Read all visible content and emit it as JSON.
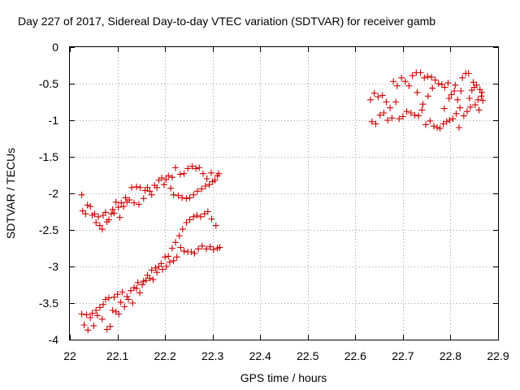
{
  "chart_data": {
    "type": "scatter",
    "title": "Day 227 of 2017, Sidereal Day-to-day VTEC variation (SDTVAR) for receiver gamb",
    "xlabel": "GPS time / hours",
    "ylabel": "SDTVAR / TECUs",
    "xlim": [
      22,
      22.9
    ],
    "ylim": [
      -4,
      0
    ],
    "xticks": [
      22,
      22.1,
      22.2,
      22.3,
      22.4,
      22.5,
      22.6,
      22.7,
      22.8,
      22.9
    ],
    "xtick_labels": [
      "22",
      "22.1",
      "22.2",
      "22.3",
      "22.4",
      "22.5",
      "22.6",
      "22.7",
      "22.8",
      "22.9"
    ],
    "yticks": [
      0,
      -0.5,
      -1,
      -1.5,
      -2,
      -2.5,
      -3,
      -3.5,
      -4
    ],
    "ytick_labels": [
      "0",
      "-0.5",
      "-1",
      "-1.5",
      "-2",
      "-2.5",
      "-3",
      "-3.5",
      "-4"
    ],
    "grid": true,
    "marker": "+",
    "color": "#cc0000",
    "series": [
      {
        "name": "SDTVAR",
        "points": [
          [
            22.025,
            -2.02
          ],
          [
            22.027,
            -2.24
          ],
          [
            22.033,
            -2.28
          ],
          [
            22.037,
            -2.16
          ],
          [
            22.043,
            -2.18
          ],
          [
            22.047,
            -2.3
          ],
          [
            22.052,
            -2.28
          ],
          [
            22.055,
            -2.4
          ],
          [
            22.06,
            -2.32
          ],
          [
            22.063,
            -2.44
          ],
          [
            22.068,
            -2.49
          ],
          [
            22.07,
            -2.3
          ],
          [
            22.075,
            -2.26
          ],
          [
            22.078,
            -2.39
          ],
          [
            22.082,
            -2.36
          ],
          [
            22.087,
            -2.28
          ],
          [
            22.09,
            -2.22
          ],
          [
            22.093,
            -2.27
          ],
          [
            22.097,
            -2.12
          ],
          [
            22.102,
            -2.19
          ],
          [
            22.105,
            -2.33
          ],
          [
            22.108,
            -2.13
          ],
          [
            22.113,
            -2.18
          ],
          [
            22.117,
            -2.06
          ],
          [
            22.12,
            -2.12
          ],
          [
            22.125,
            -2.09
          ],
          [
            22.13,
            -1.92
          ],
          [
            22.135,
            -2.13
          ],
          [
            22.14,
            -1.91
          ],
          [
            22.145,
            -2.15
          ],
          [
            22.148,
            -1.92
          ],
          [
            22.155,
            -2.07
          ],
          [
            22.158,
            -1.96
          ],
          [
            22.163,
            -1.92
          ],
          [
            22.168,
            -1.97
          ],
          [
            22.172,
            -2.02
          ],
          [
            22.178,
            -1.89
          ],
          [
            22.183,
            -1.92
          ],
          [
            22.187,
            -1.82
          ],
          [
            22.193,
            -1.79
          ],
          [
            22.198,
            -1.88
          ],
          [
            22.202,
            -1.81
          ],
          [
            22.207,
            -1.76
          ],
          [
            22.212,
            -1.93
          ],
          [
            22.215,
            -1.78
          ],
          [
            22.218,
            -2.02
          ],
          [
            22.222,
            -1.65
          ],
          [
            22.228,
            -2.03
          ],
          [
            22.232,
            -1.74
          ],
          [
            22.236,
            -2.06
          ],
          [
            22.24,
            -1.73
          ],
          [
            22.245,
            -2.07
          ],
          [
            22.248,
            -1.66
          ],
          [
            22.252,
            -2.06
          ],
          [
            22.257,
            -1.63
          ],
          [
            22.26,
            -2.02
          ],
          [
            22.265,
            -1.66
          ],
          [
            22.268,
            -1.97
          ],
          [
            22.272,
            -1.65
          ],
          [
            22.277,
            -1.94
          ],
          [
            22.28,
            -1.73
          ],
          [
            22.285,
            -1.9
          ],
          [
            22.288,
            -1.8
          ],
          [
            22.293,
            -1.88
          ],
          [
            22.297,
            -1.72
          ],
          [
            22.3,
            -1.84
          ],
          [
            22.305,
            -1.82
          ],
          [
            22.31,
            -1.76
          ],
          [
            22.313,
            -1.73
          ],
          [
            22.025,
            -3.65
          ],
          [
            22.03,
            -3.8
          ],
          [
            22.035,
            -3.66
          ],
          [
            22.038,
            -3.87
          ],
          [
            22.043,
            -3.7
          ],
          [
            22.047,
            -3.64
          ],
          [
            22.05,
            -3.81
          ],
          [
            22.055,
            -3.6
          ],
          [
            22.058,
            -3.67
          ],
          [
            22.063,
            -3.56
          ],
          [
            22.068,
            -3.72
          ],
          [
            22.07,
            -3.52
          ],
          [
            22.075,
            -3.45
          ],
          [
            22.078,
            -3.86
          ],
          [
            22.082,
            -3.43
          ],
          [
            22.085,
            -3.82
          ],
          [
            22.09,
            -3.6
          ],
          [
            22.093,
            -3.42
          ],
          [
            22.097,
            -3.62
          ],
          [
            22.1,
            -3.38
          ],
          [
            22.103,
            -3.65
          ],
          [
            22.107,
            -3.49
          ],
          [
            22.11,
            -3.35
          ],
          [
            22.115,
            -3.55
          ],
          [
            22.12,
            -3.41
          ],
          [
            22.123,
            -3.45
          ],
          [
            22.128,
            -3.33
          ],
          [
            22.132,
            -3.5
          ],
          [
            22.135,
            -3.29
          ],
          [
            22.14,
            -3.3
          ],
          [
            22.143,
            -3.22
          ],
          [
            22.147,
            -3.36
          ],
          [
            22.152,
            -3.25
          ],
          [
            22.155,
            -3.2
          ],
          [
            22.16,
            -3.19
          ],
          [
            22.163,
            -3.12
          ],
          [
            22.168,
            -3.16
          ],
          [
            22.172,
            -3.05
          ],
          [
            22.175,
            -3.18
          ],
          [
            22.18,
            -3.02
          ],
          [
            22.183,
            -3.08
          ],
          [
            22.187,
            -3.0
          ],
          [
            22.192,
            -2.96
          ],
          [
            22.195,
            -3.04
          ],
          [
            22.2,
            -2.87
          ],
          [
            22.203,
            -3.0
          ],
          [
            22.207,
            -2.86
          ],
          [
            22.21,
            -2.94
          ],
          [
            22.215,
            -2.75
          ],
          [
            22.218,
            -2.92
          ],
          [
            22.222,
            -2.67
          ],
          [
            22.225,
            -2.87
          ],
          [
            22.23,
            -2.58
          ],
          [
            22.233,
            -2.74
          ],
          [
            22.237,
            -2.49
          ],
          [
            22.24,
            -2.79
          ],
          [
            22.245,
            -2.4
          ],
          [
            22.248,
            -2.8
          ],
          [
            22.252,
            -2.36
          ],
          [
            22.255,
            -2.8
          ],
          [
            22.26,
            -2.32
          ],
          [
            22.262,
            -2.82
          ],
          [
            22.267,
            -2.3
          ],
          [
            22.27,
            -2.76
          ],
          [
            22.275,
            -2.32
          ],
          [
            22.278,
            -2.72
          ],
          [
            22.283,
            -2.28
          ],
          [
            22.287,
            -2.76
          ],
          [
            22.29,
            -2.25
          ],
          [
            22.295,
            -2.73
          ],
          [
            22.298,
            -2.35
          ],
          [
            22.302,
            -2.77
          ],
          [
            22.307,
            -2.44
          ],
          [
            22.31,
            -2.75
          ],
          [
            22.315,
            -2.74
          ],
          [
            22.632,
            -0.72
          ],
          [
            22.635,
            -1.02
          ],
          [
            22.64,
            -0.63
          ],
          [
            22.643,
            -1.05
          ],
          [
            22.648,
            -0.68
          ],
          [
            22.652,
            -0.93
          ],
          [
            22.657,
            -0.66
          ],
          [
            22.66,
            -0.9
          ],
          [
            22.665,
            -0.75
          ],
          [
            22.668,
            -1.0
          ],
          [
            22.673,
            -0.83
          ],
          [
            22.677,
            -0.97
          ],
          [
            22.68,
            -0.47
          ],
          [
            22.685,
            -0.75
          ],
          [
            22.688,
            -0.53
          ],
          [
            22.692,
            -0.98
          ],
          [
            22.697,
            -0.42
          ],
          [
            22.7,
            -0.95
          ],
          [
            22.705,
            -0.47
          ],
          [
            22.708,
            -0.88
          ],
          [
            22.713,
            -0.53
          ],
          [
            22.717,
            -0.9
          ],
          [
            22.72,
            -0.39
          ],
          [
            22.725,
            -0.93
          ],
          [
            22.728,
            -0.35
          ],
          [
            22.733,
            -0.94
          ],
          [
            22.737,
            -0.35
          ],
          [
            22.74,
            -0.86
          ],
          [
            22.745,
            -0.42
          ],
          [
            22.748,
            -1.06
          ],
          [
            22.752,
            -0.4
          ],
          [
            22.757,
            -1.01
          ],
          [
            22.76,
            -0.41
          ],
          [
            22.765,
            -1.08
          ],
          [
            22.768,
            -0.45
          ],
          [
            22.772,
            -1.1
          ],
          [
            22.775,
            -0.5
          ],
          [
            22.778,
            -1.11
          ],
          [
            22.782,
            -0.51
          ],
          [
            22.785,
            -1.05
          ],
          [
            22.788,
            -0.55
          ],
          [
            22.792,
            -1.02
          ],
          [
            22.795,
            -0.49
          ],
          [
            22.798,
            -1.0
          ],
          [
            22.802,
            -0.65
          ],
          [
            22.805,
            -0.98
          ],
          [
            22.808,
            -0.6
          ],
          [
            22.812,
            -0.91
          ],
          [
            22.815,
            -0.72
          ],
          [
            22.818,
            -1.1
          ],
          [
            22.822,
            -0.6
          ],
          [
            22.825,
            -0.42
          ],
          [
            22.828,
            -0.94
          ],
          [
            22.832,
            -0.36
          ],
          [
            22.835,
            -0.88
          ],
          [
            22.838,
            -0.36
          ],
          [
            22.842,
            -0.82
          ],
          [
            22.845,
            -0.59
          ],
          [
            22.848,
            -0.48
          ],
          [
            22.852,
            -0.79
          ],
          [
            22.855,
            -0.52
          ],
          [
            22.858,
            -0.72
          ],
          [
            22.862,
            -0.58
          ],
          [
            22.865,
            -0.67
          ],
          [
            22.868,
            -0.73
          ],
          [
            22.73,
            -0.62
          ],
          [
            22.742,
            -0.78
          ],
          [
            22.753,
            -0.67
          ],
          [
            22.762,
            -0.56
          ],
          [
            22.787,
            -0.84
          ],
          [
            22.797,
            -0.7
          ],
          [
            22.81,
            -0.52
          ],
          [
            22.82,
            -0.83
          ],
          [
            22.84,
            -0.7
          ],
          [
            22.85,
            -0.55
          ],
          [
            22.86,
            -0.86
          ],
          [
            22.866,
            -0.62
          ]
        ]
      }
    ]
  }
}
